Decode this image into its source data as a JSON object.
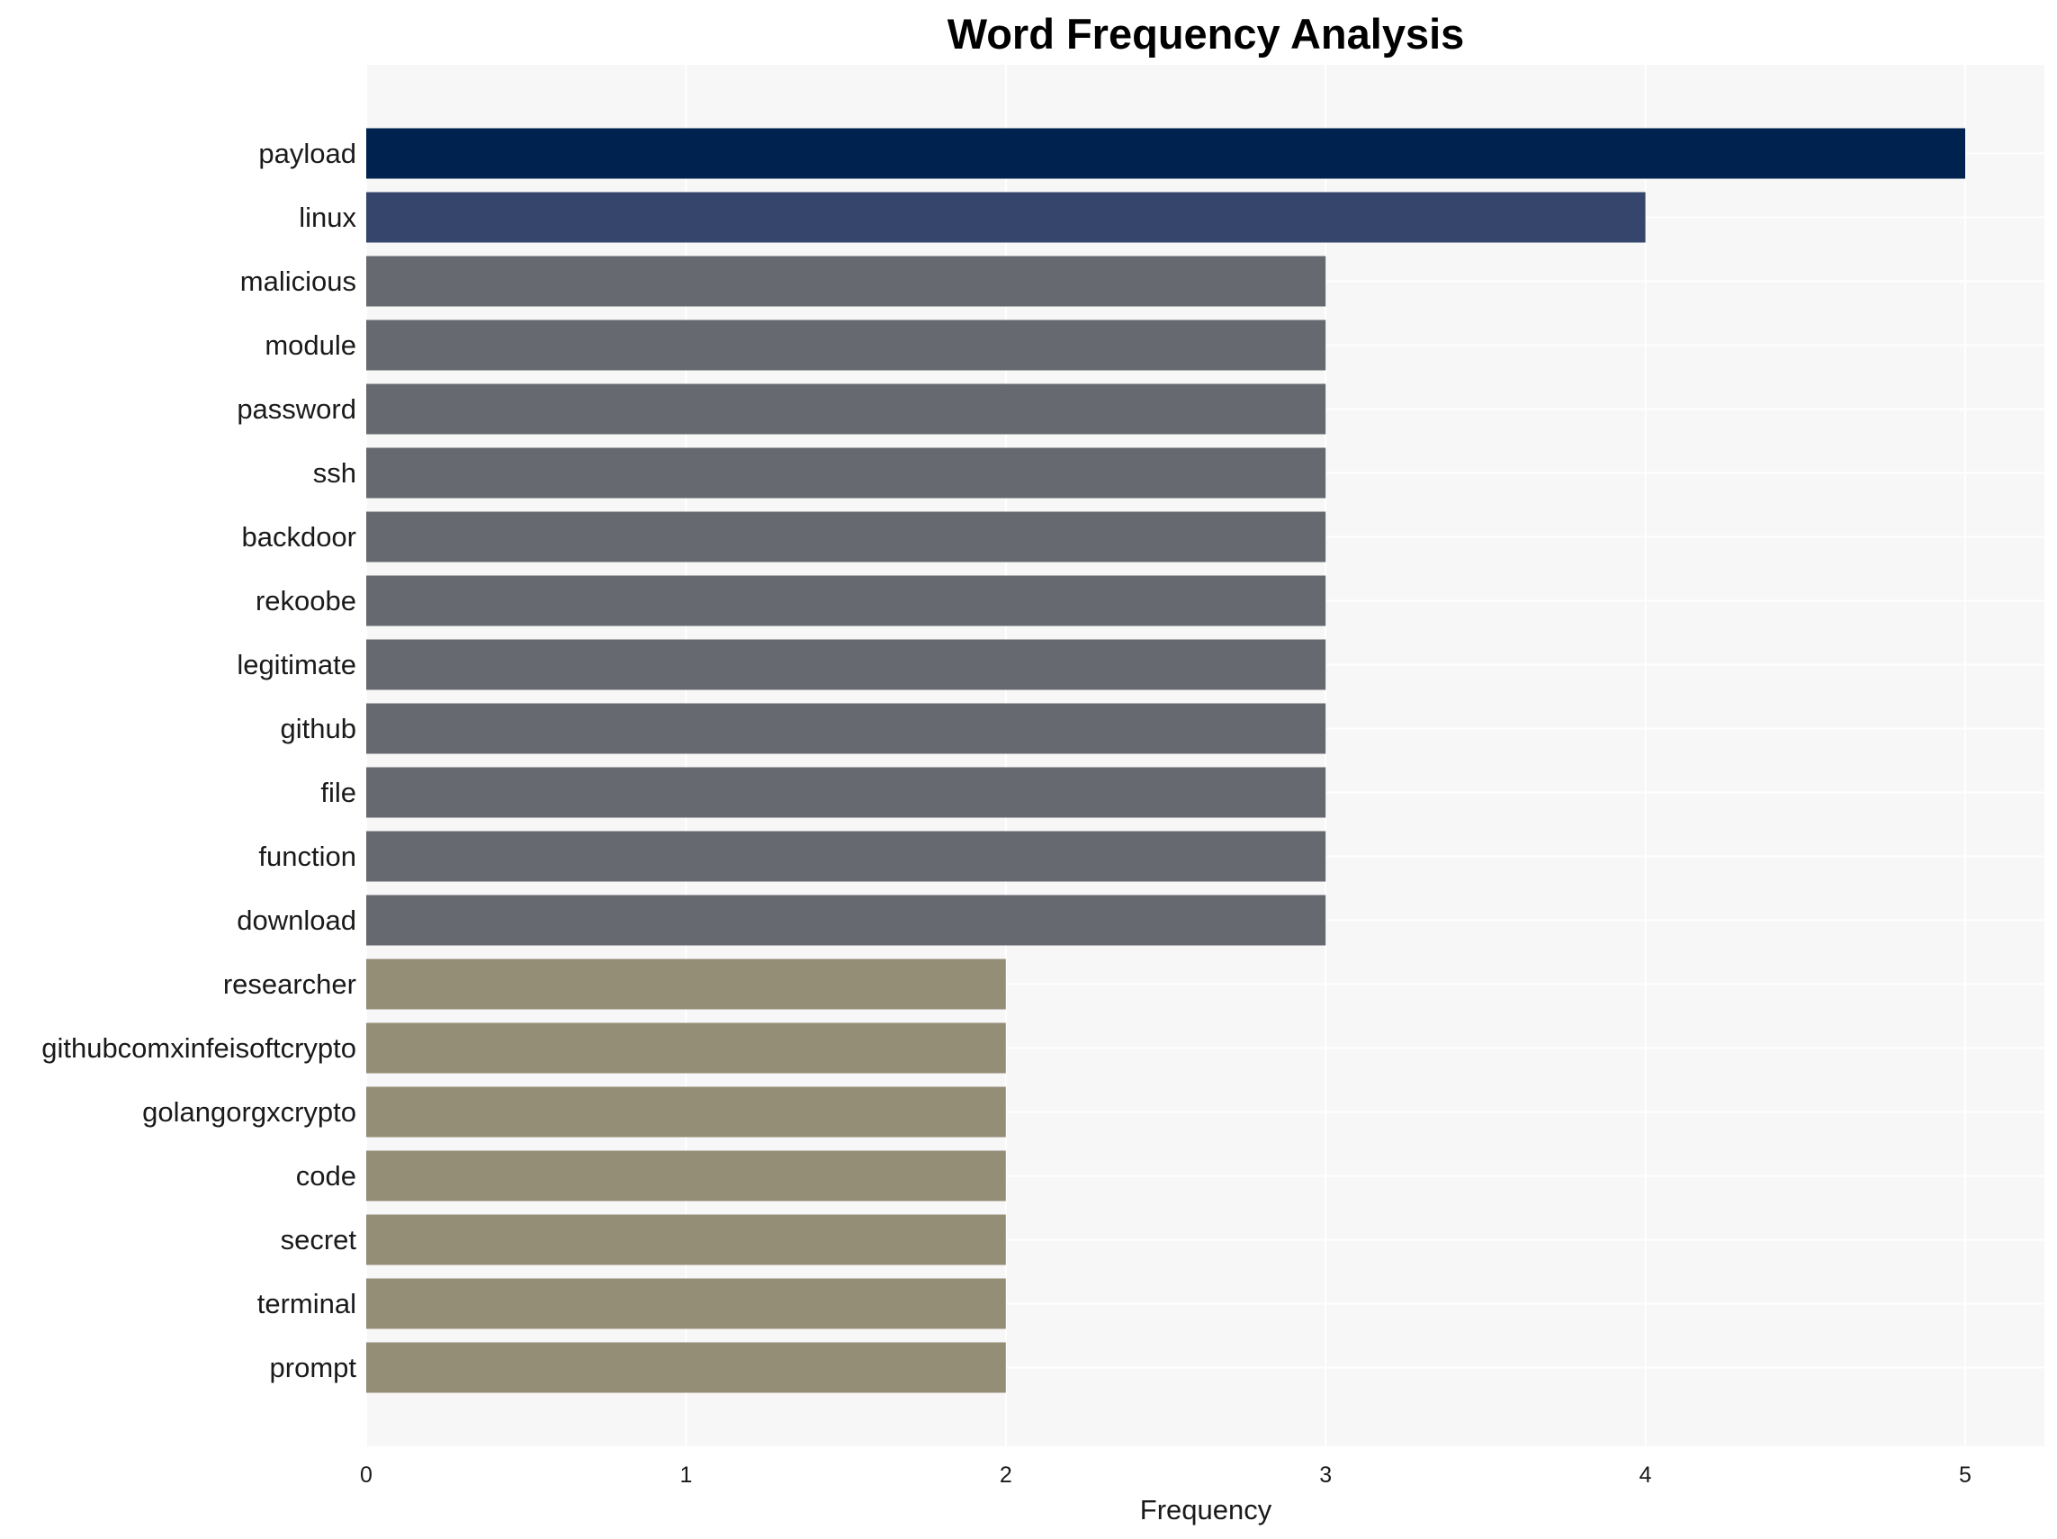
{
  "chart_data": {
    "type": "bar",
    "orientation": "horizontal",
    "title": "Word Frequency Analysis",
    "xlabel": "Frequency",
    "ylabel": "",
    "xlim": [
      0,
      5.2
    ],
    "xticks": [
      0,
      1,
      2,
      3,
      4,
      5
    ],
    "grid": true,
    "categories": [
      "payload",
      "linux",
      "malicious",
      "module",
      "password",
      "ssh",
      "backdoor",
      "rekoobe",
      "legitimate",
      "github",
      "file",
      "function",
      "download",
      "researcher",
      "githubcomxinfeisoftcrypto",
      "golangorgxcrypto",
      "code",
      "secret",
      "terminal",
      "prompt"
    ],
    "values": [
      5,
      4,
      3,
      3,
      3,
      3,
      3,
      3,
      3,
      3,
      3,
      3,
      3,
      2,
      2,
      2,
      2,
      2,
      2,
      2
    ],
    "colors": {
      "5": "#00224e",
      "4": "#35456c",
      "3": "#666970",
      "2": "#948e77"
    },
    "plot_background": "#f7f7f7",
    "grid_color": "#ffffff"
  }
}
